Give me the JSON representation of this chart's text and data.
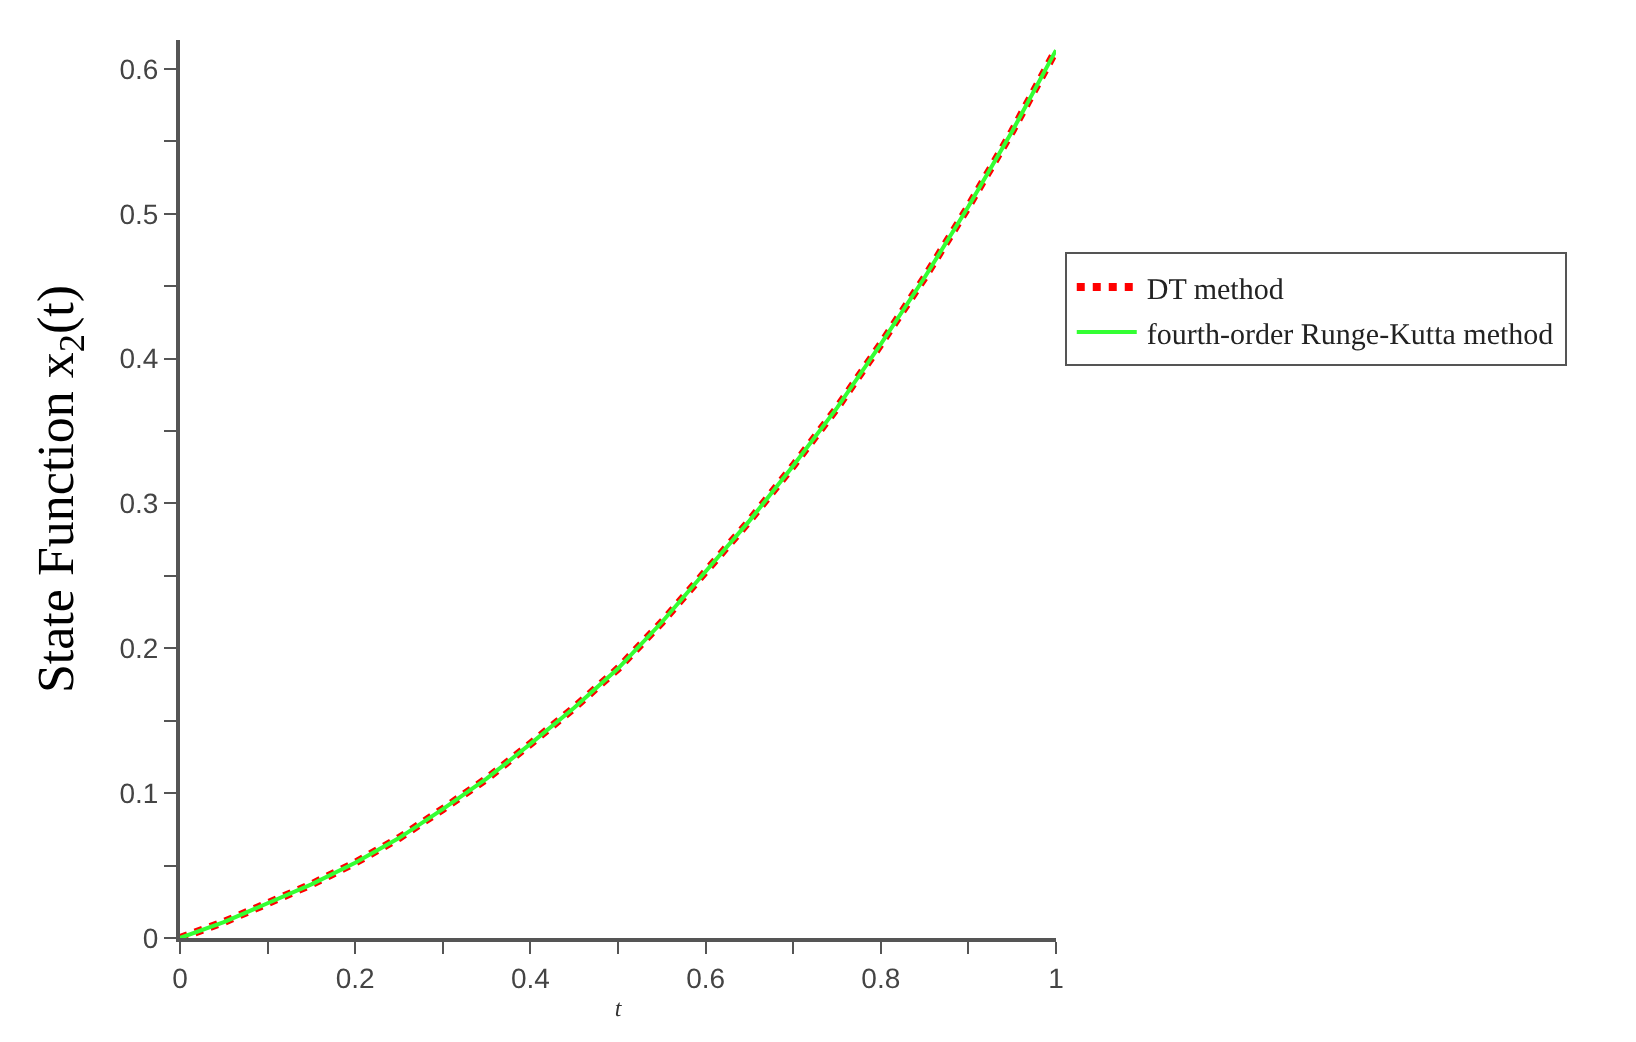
{
  "chart_data": {
    "type": "line",
    "xlabel": "t",
    "ylabel": "State Function x$_{2}$(t)",
    "x": [
      0,
      0.05,
      0.1,
      0.15,
      0.2,
      0.25,
      0.3,
      0.35,
      0.4,
      0.45,
      0.5,
      0.55,
      0.6,
      0.65,
      0.7,
      0.75,
      0.8,
      0.85,
      0.9,
      0.95,
      1
    ],
    "series": [
      {
        "name": "DT method",
        "color": "#ff0000",
        "line_style": "dotted",
        "values": [
          0,
          0.011,
          0.024,
          0.037,
          0.052,
          0.069,
          0.089,
          0.11,
          0.134,
          0.159,
          0.186,
          0.218,
          0.253,
          0.288,
          0.326,
          0.366,
          0.41,
          0.456,
          0.505,
          0.557,
          0.613
        ]
      },
      {
        "name": "fourth-order Runge-Kutta method",
        "color": "#33ff33",
        "line_style": "solid",
        "values": [
          0,
          0.011,
          0.024,
          0.037,
          0.052,
          0.069,
          0.089,
          0.11,
          0.134,
          0.159,
          0.186,
          0.218,
          0.253,
          0.288,
          0.326,
          0.366,
          0.41,
          0.456,
          0.505,
          0.557,
          0.613
        ]
      }
    ],
    "xlim": [
      0,
      1
    ],
    "ylim": [
      0,
      0.62
    ],
    "xticks": [
      0,
      {
        "value": 0.1,
        "label": null
      },
      0.2,
      {
        "value": 0.3,
        "label": null
      },
      0.4,
      {
        "value": 0.5,
        "label": null
      },
      0.6,
      {
        "value": 0.7,
        "label": null
      },
      0.8,
      {
        "value": 0.9,
        "label": null
      },
      1
    ],
    "yticks": [
      0,
      {
        "value": 0.05,
        "label": null
      },
      0.1,
      {
        "value": 0.15,
        "label": null
      },
      0.2,
      {
        "value": 0.25,
        "label": null
      },
      0.3,
      {
        "value": 0.35,
        "label": null
      },
      0.4,
      {
        "value": 0.45,
        "label": null
      },
      0.5,
      {
        "value": 0.55,
        "label": null
      },
      0.6
    ],
    "legend": "right",
    "marker": "none"
  }
}
